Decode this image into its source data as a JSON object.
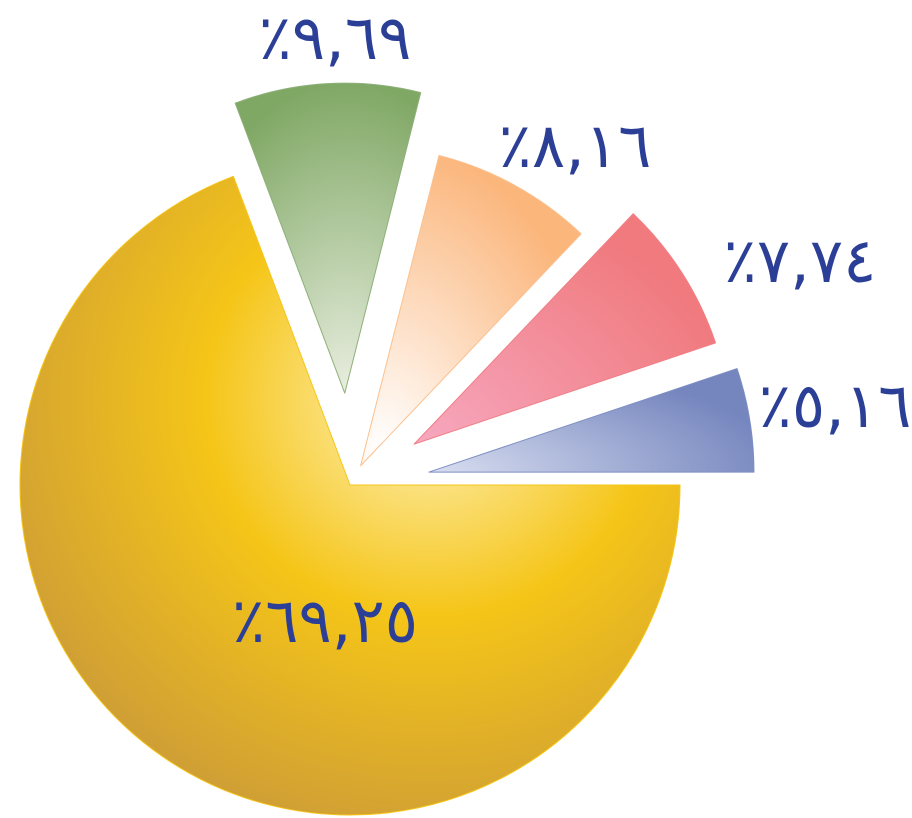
{
  "chart_data": {
    "type": "pie",
    "values": [
      69.25,
      9.69,
      8.16,
      7.74,
      5.16
    ],
    "value_labels": [
      "٪٦٩,٢٥",
      "٪٩,٦٩",
      "٪٨,١٦",
      "٪٧,٧٤",
      "٪٥,١٦"
    ],
    "colors": [
      "#f5c518",
      "#8fb07a",
      "#fbc08e",
      "#f07f86",
      "#7d8fc2"
    ]
  }
}
